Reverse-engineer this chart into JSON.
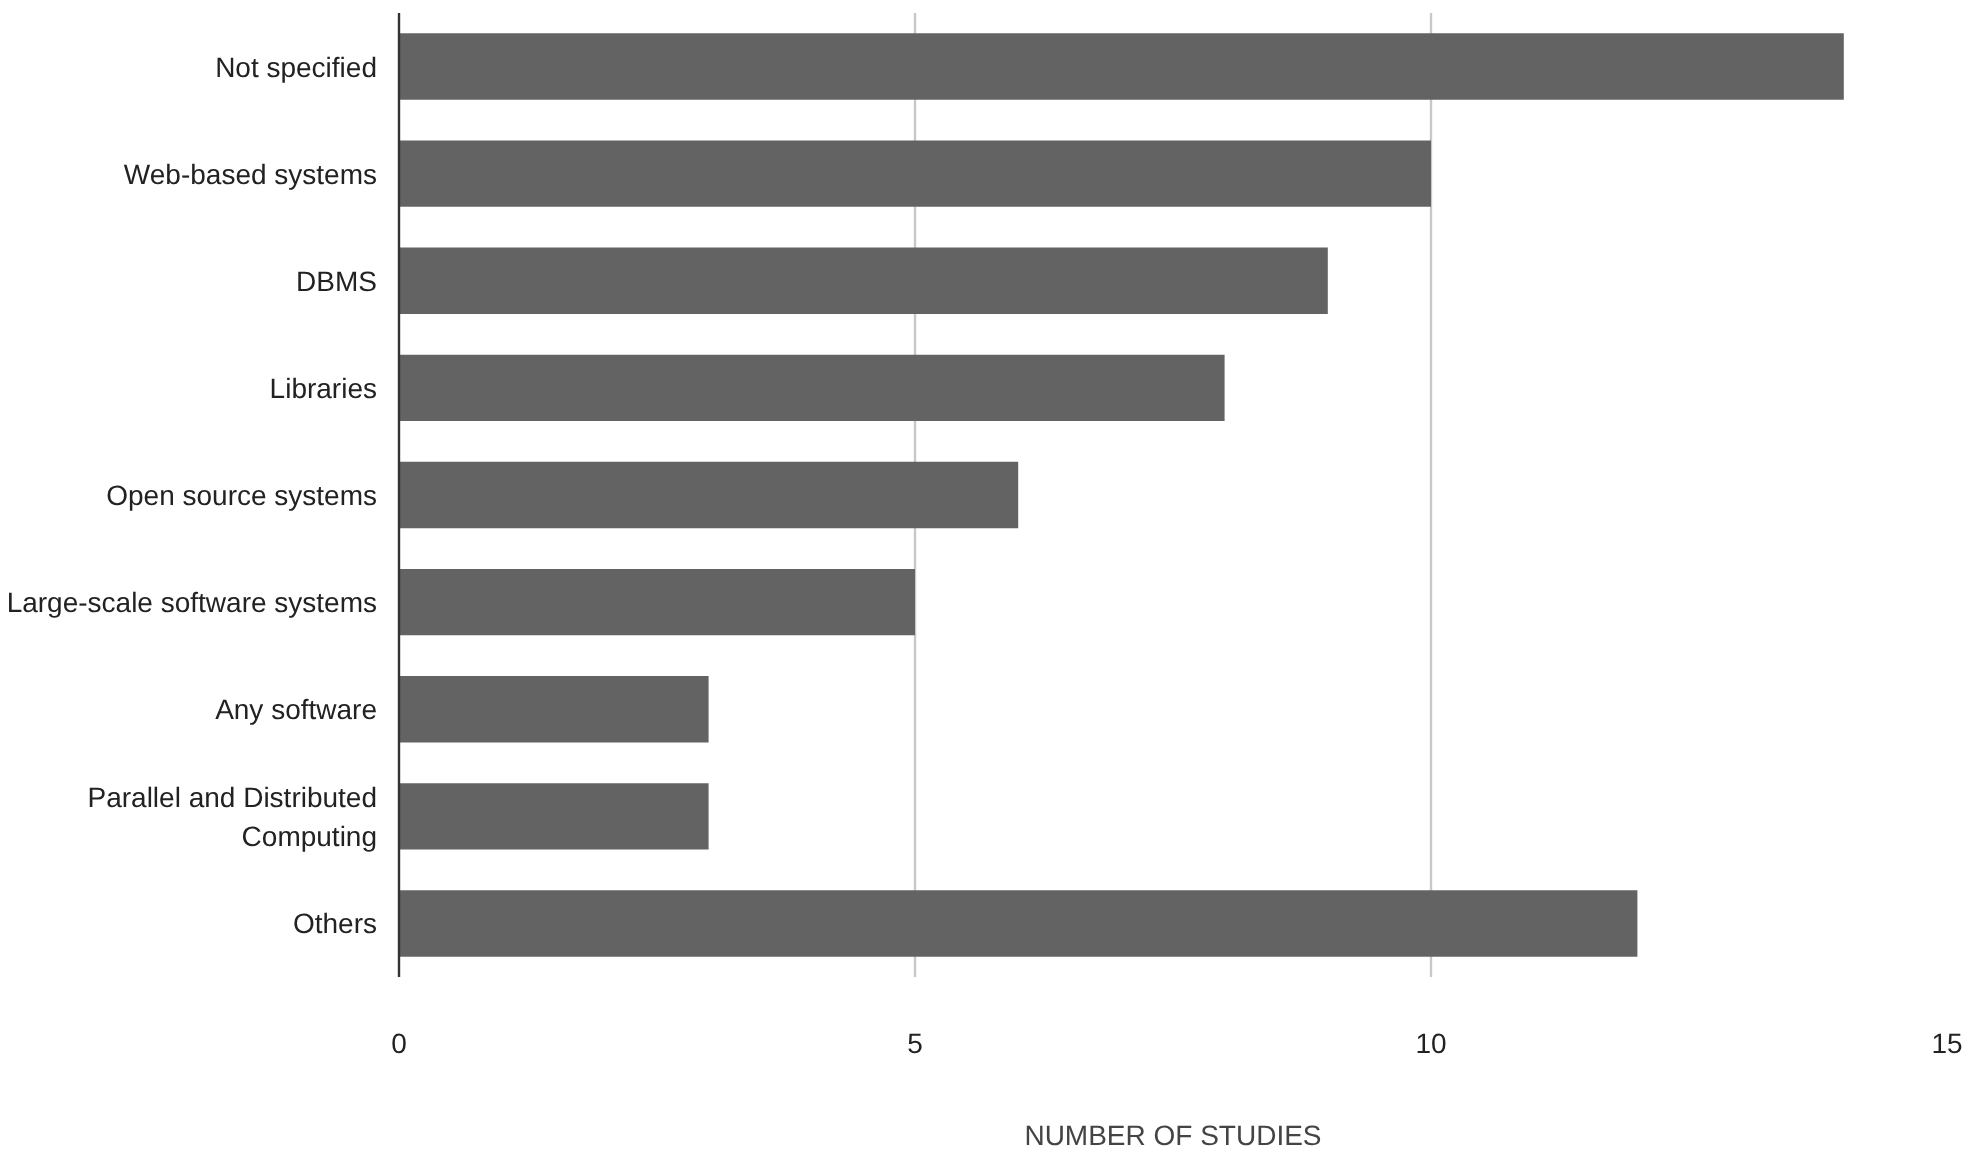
{
  "chart_data": {
    "type": "bar",
    "orientation": "horizontal",
    "xlabel": "NUMBER OF STUDIES",
    "categories": [
      "Not specified",
      "Web-based systems",
      "DBMS",
      "Libraries",
      "Open source systems",
      "Large-scale software systems",
      "Any software",
      "Parallel and Distributed Computing",
      "Others"
    ],
    "values": [
      14,
      10,
      9,
      8,
      6,
      5,
      3,
      3,
      12
    ],
    "color": "#636363",
    "xlim": [
      0,
      15
    ],
    "xticks": [
      0,
      5,
      10,
      15
    ],
    "grid": "x"
  }
}
